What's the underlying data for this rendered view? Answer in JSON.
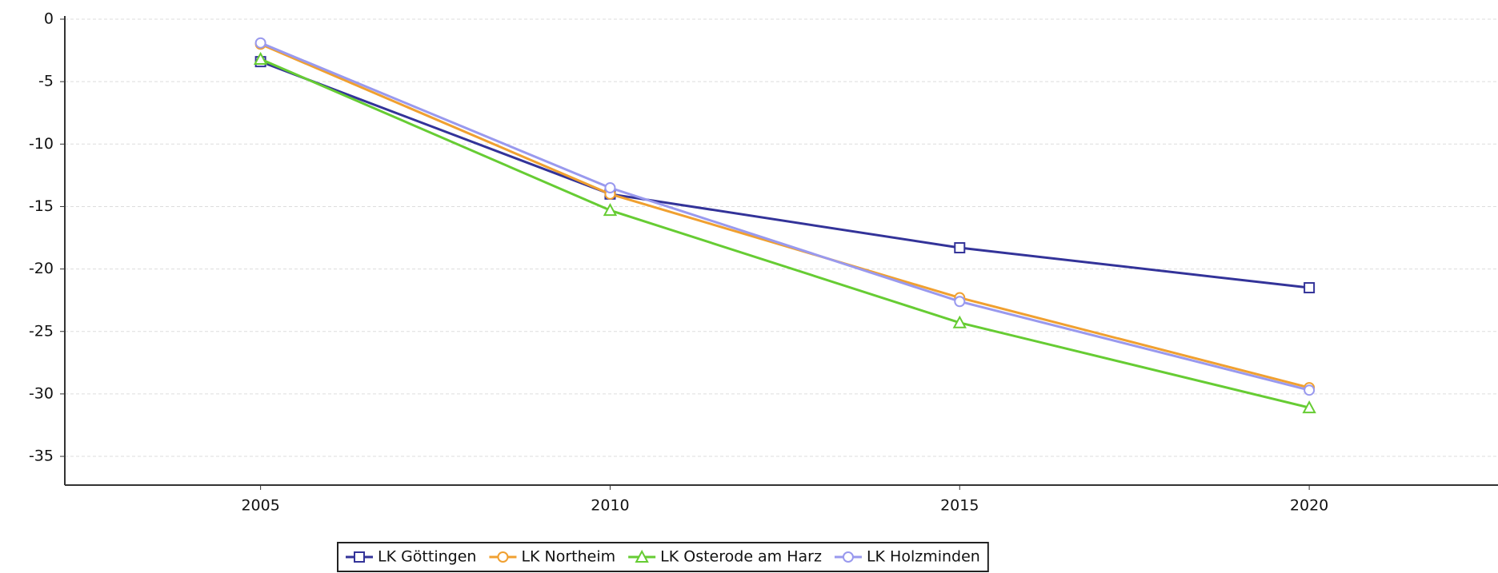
{
  "chart_data": {
    "type": "line",
    "x": [
      2005,
      2010,
      2015,
      2020
    ],
    "xlim": [
      2002.2,
      2022.7
    ],
    "xticks": [
      2005,
      2010,
      2015,
      2020
    ],
    "ylim": [
      -37.3,
      0
    ],
    "yticks": [
      0,
      -5,
      -10,
      -15,
      -20,
      -25,
      -30,
      -35
    ],
    "grid": true,
    "legend": "bottom",
    "series": [
      {
        "name": "LK Göttingen",
        "color": "#333399",
        "marker": "square",
        "values": [
          -3.4,
          -14.0,
          -18.3,
          -21.5
        ]
      },
      {
        "name": "LK Northeim",
        "color": "#f0a030",
        "marker": "circle",
        "values": [
          -2.0,
          -14.0,
          -22.3,
          -29.5
        ]
      },
      {
        "name": "LK Osterode am Harz",
        "color": "#66cc33",
        "marker": "triangle",
        "values": [
          -3.2,
          -15.3,
          -24.3,
          -31.1
        ]
      },
      {
        "name": "LK Holzminden",
        "color": "#9999ee",
        "marker": "circle",
        "values": [
          -1.9,
          -13.5,
          -22.6,
          -29.7
        ]
      }
    ]
  }
}
